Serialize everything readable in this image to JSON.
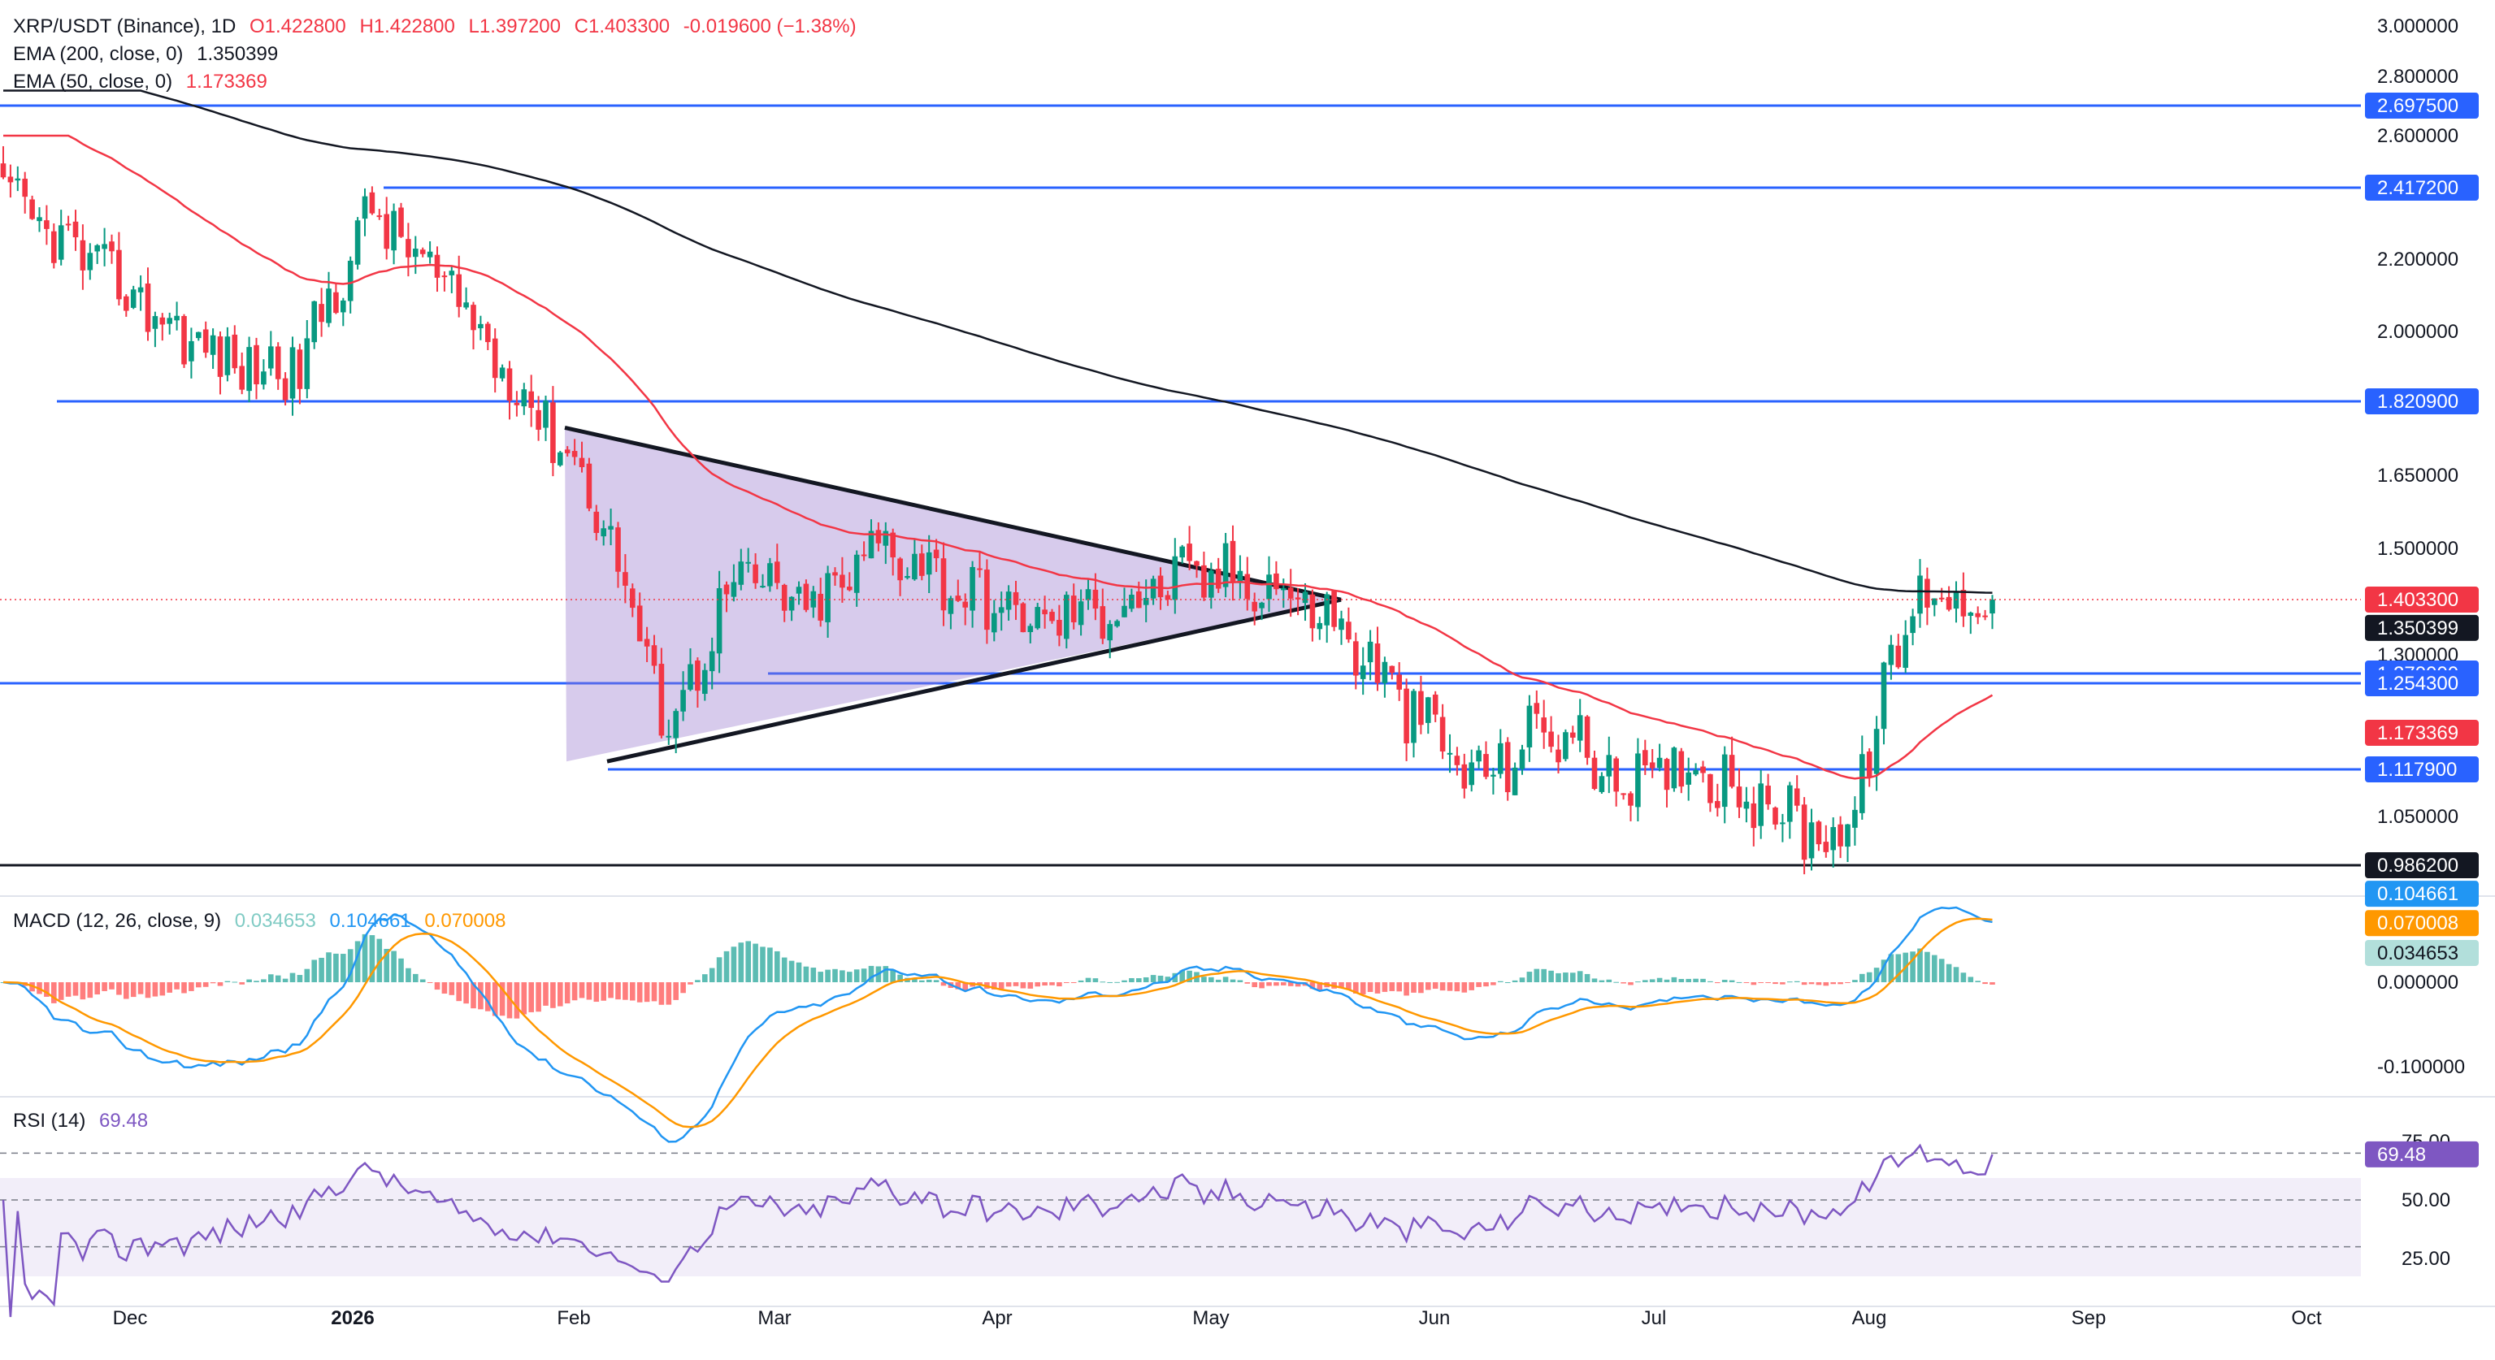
{
  "header": {
    "symbol": "XRP/USDT (Binance), 1D",
    "open": "O1.422800",
    "high": "H1.422800",
    "low": "L1.397200",
    "close": "C1.403300",
    "change": "-0.019600 (−1.38%)",
    "ema200_label": "EMA (200, close, 0)",
    "ema200_value": "1.350399",
    "ema50_label": "EMA (50, close, 0)",
    "ema50_value": "1.173369",
    "macd_label": "MACD (12, 26, close, 9)",
    "macd_hist": "0.034653",
    "macd_line": "0.104661",
    "macd_signal": "0.070008",
    "rsi_label": "RSI (14)",
    "rsi_value": "69.48"
  },
  "colors": {
    "up": "#089981",
    "down": "#f23645",
    "ema200": "#131722",
    "ema50": "#f23645",
    "hline": "#2962ff",
    "triangle_fill": "#9575cd",
    "macd": "#2196f3",
    "signal": "#ff9800",
    "rsi": "#7e57c2"
  },
  "chart_data": [
    {
      "type": "candlestick",
      "title": "XRP/USDT (Binance), 1D",
      "x_ticks": [
        "Dec",
        "2026",
        "Feb",
        "Mar",
        "Apr",
        "May",
        "Jun",
        "Jul",
        "Aug",
        "Sep",
        "Oct"
      ],
      "y_ticks": [
        "3.000000",
        "2.800000",
        "2.600000",
        "2.200000",
        "2.000000",
        "1.650000",
        "1.500000",
        "1.300000",
        "1.050000"
      ],
      "horizontal_levels": [
        "2.697500",
        "2.417200",
        "1.820900",
        "1.270000",
        "1.254300",
        "1.117900",
        "0.986200"
      ],
      "last_price": "1.403300",
      "ema200_last": "1.350399",
      "ema50_last": "1.173369",
      "sample_closes": [
        2.38,
        2.22,
        2.06,
        1.92,
        1.9,
        2.35,
        2.12,
        1.86,
        1.62,
        1.18,
        1.45,
        1.38,
        1.52,
        1.42,
        1.36,
        1.39,
        1.44,
        1.45,
        1.37,
        1.22,
        1.1,
        1.19,
        1.09,
        1.13,
        1.06,
        1.02,
        1.42,
        1.4033
      ]
    },
    {
      "type": "line",
      "title": "MACD (12, 26, close, 9)",
      "series": [
        {
          "name": "MACD",
          "last": "0.104661"
        },
        {
          "name": "Signal",
          "last": "0.070008"
        },
        {
          "name": "Histogram",
          "last": "0.034653"
        }
      ],
      "y_ticks": [
        "0.000000",
        "-0.100000"
      ]
    },
    {
      "type": "line",
      "title": "RSI (14)",
      "series": [
        {
          "name": "RSI",
          "last": "69.48"
        }
      ],
      "y_ticks": [
        "75.00",
        "50.00",
        "25.00"
      ],
      "band": [
        30,
        70
      ]
    }
  ]
}
